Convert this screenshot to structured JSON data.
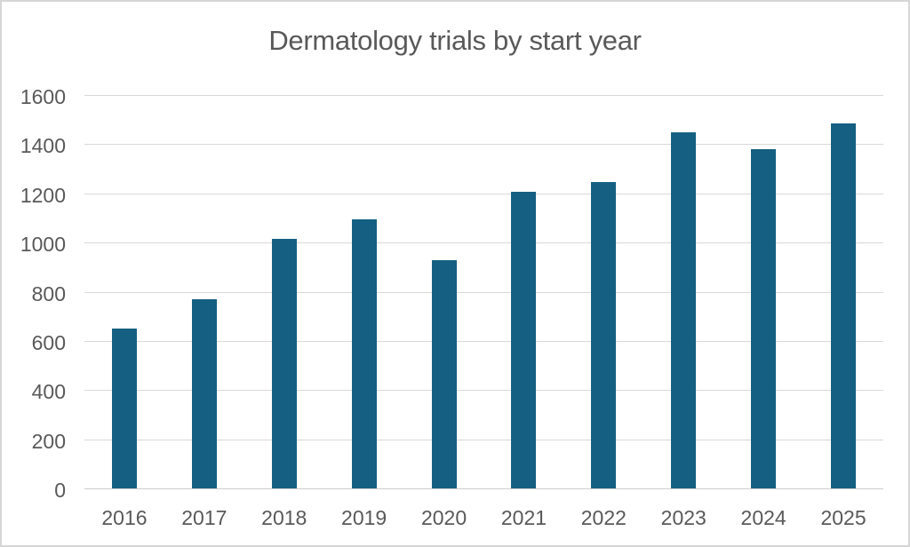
{
  "chart_data": {
    "type": "bar",
    "title": "Dermatology trials by start year",
    "categories": [
      "2016",
      "2017",
      "2018",
      "2019",
      "2020",
      "2021",
      "2022",
      "2023",
      "2024",
      "2025"
    ],
    "values": [
      650,
      770,
      1015,
      1095,
      930,
      1205,
      1245,
      1450,
      1380,
      1485
    ],
    "xlabel": "",
    "ylabel": "",
    "ylim": [
      0,
      1600
    ],
    "yticks": [
      0,
      200,
      400,
      600,
      800,
      1000,
      1200,
      1400,
      1600
    ],
    "grid": true,
    "legend": "none",
    "colors": {
      "bar": "#156082",
      "gridline": "#d9d9d9",
      "axis_line": "#cccccc",
      "text": "#595959",
      "background": "#ffffff",
      "canvas_border": "#d6d6d6"
    }
  }
}
